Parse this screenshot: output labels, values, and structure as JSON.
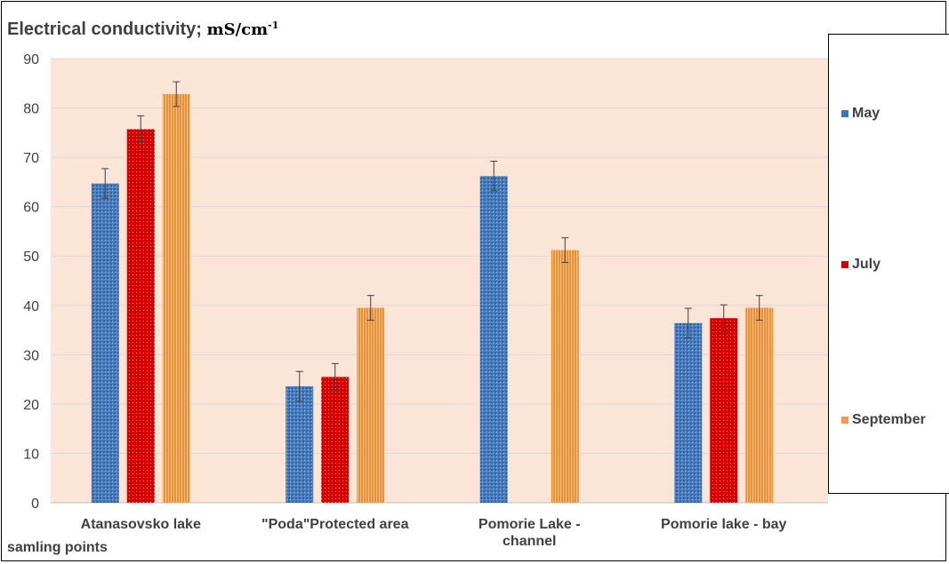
{
  "chart_data": {
    "type": "bar",
    "title": "Electrical conductivity;",
    "unit_base": "mS/cm",
    "unit_exp": "-1",
    "xlabel": "samling points",
    "ylabel": "",
    "ylim": [
      0,
      90
    ],
    "yticks": [
      0,
      10,
      20,
      30,
      40,
      50,
      60,
      70,
      80,
      90
    ],
    "categories": [
      [
        "Atanasovsko lake"
      ],
      [
        "\"Poda\"Protected area"
      ],
      [
        "Pomorie Lake -",
        "channel"
      ],
      [
        "Pomorie lake - bay"
      ]
    ],
    "series": [
      {
        "name": "May",
        "color": "#3f73b8",
        "values": [
          64.7,
          23.6,
          66.2,
          36.4
        ],
        "errors": [
          3,
          3,
          3,
          3
        ]
      },
      {
        "name": "July",
        "color": "#d20000",
        "values": [
          75.7,
          25.5,
          null,
          37.4
        ],
        "errors": [
          2.7,
          2.7,
          null,
          2.7
        ]
      },
      {
        "name": "September",
        "color": "#f19a4c",
        "values": [
          82.8,
          39.5,
          51.2,
          39.5
        ],
        "errors": [
          2.5,
          2.5,
          2.5,
          2.5
        ]
      }
    ],
    "grid": true,
    "legend_position": "right",
    "plot_background": "#fbe5d6"
  }
}
